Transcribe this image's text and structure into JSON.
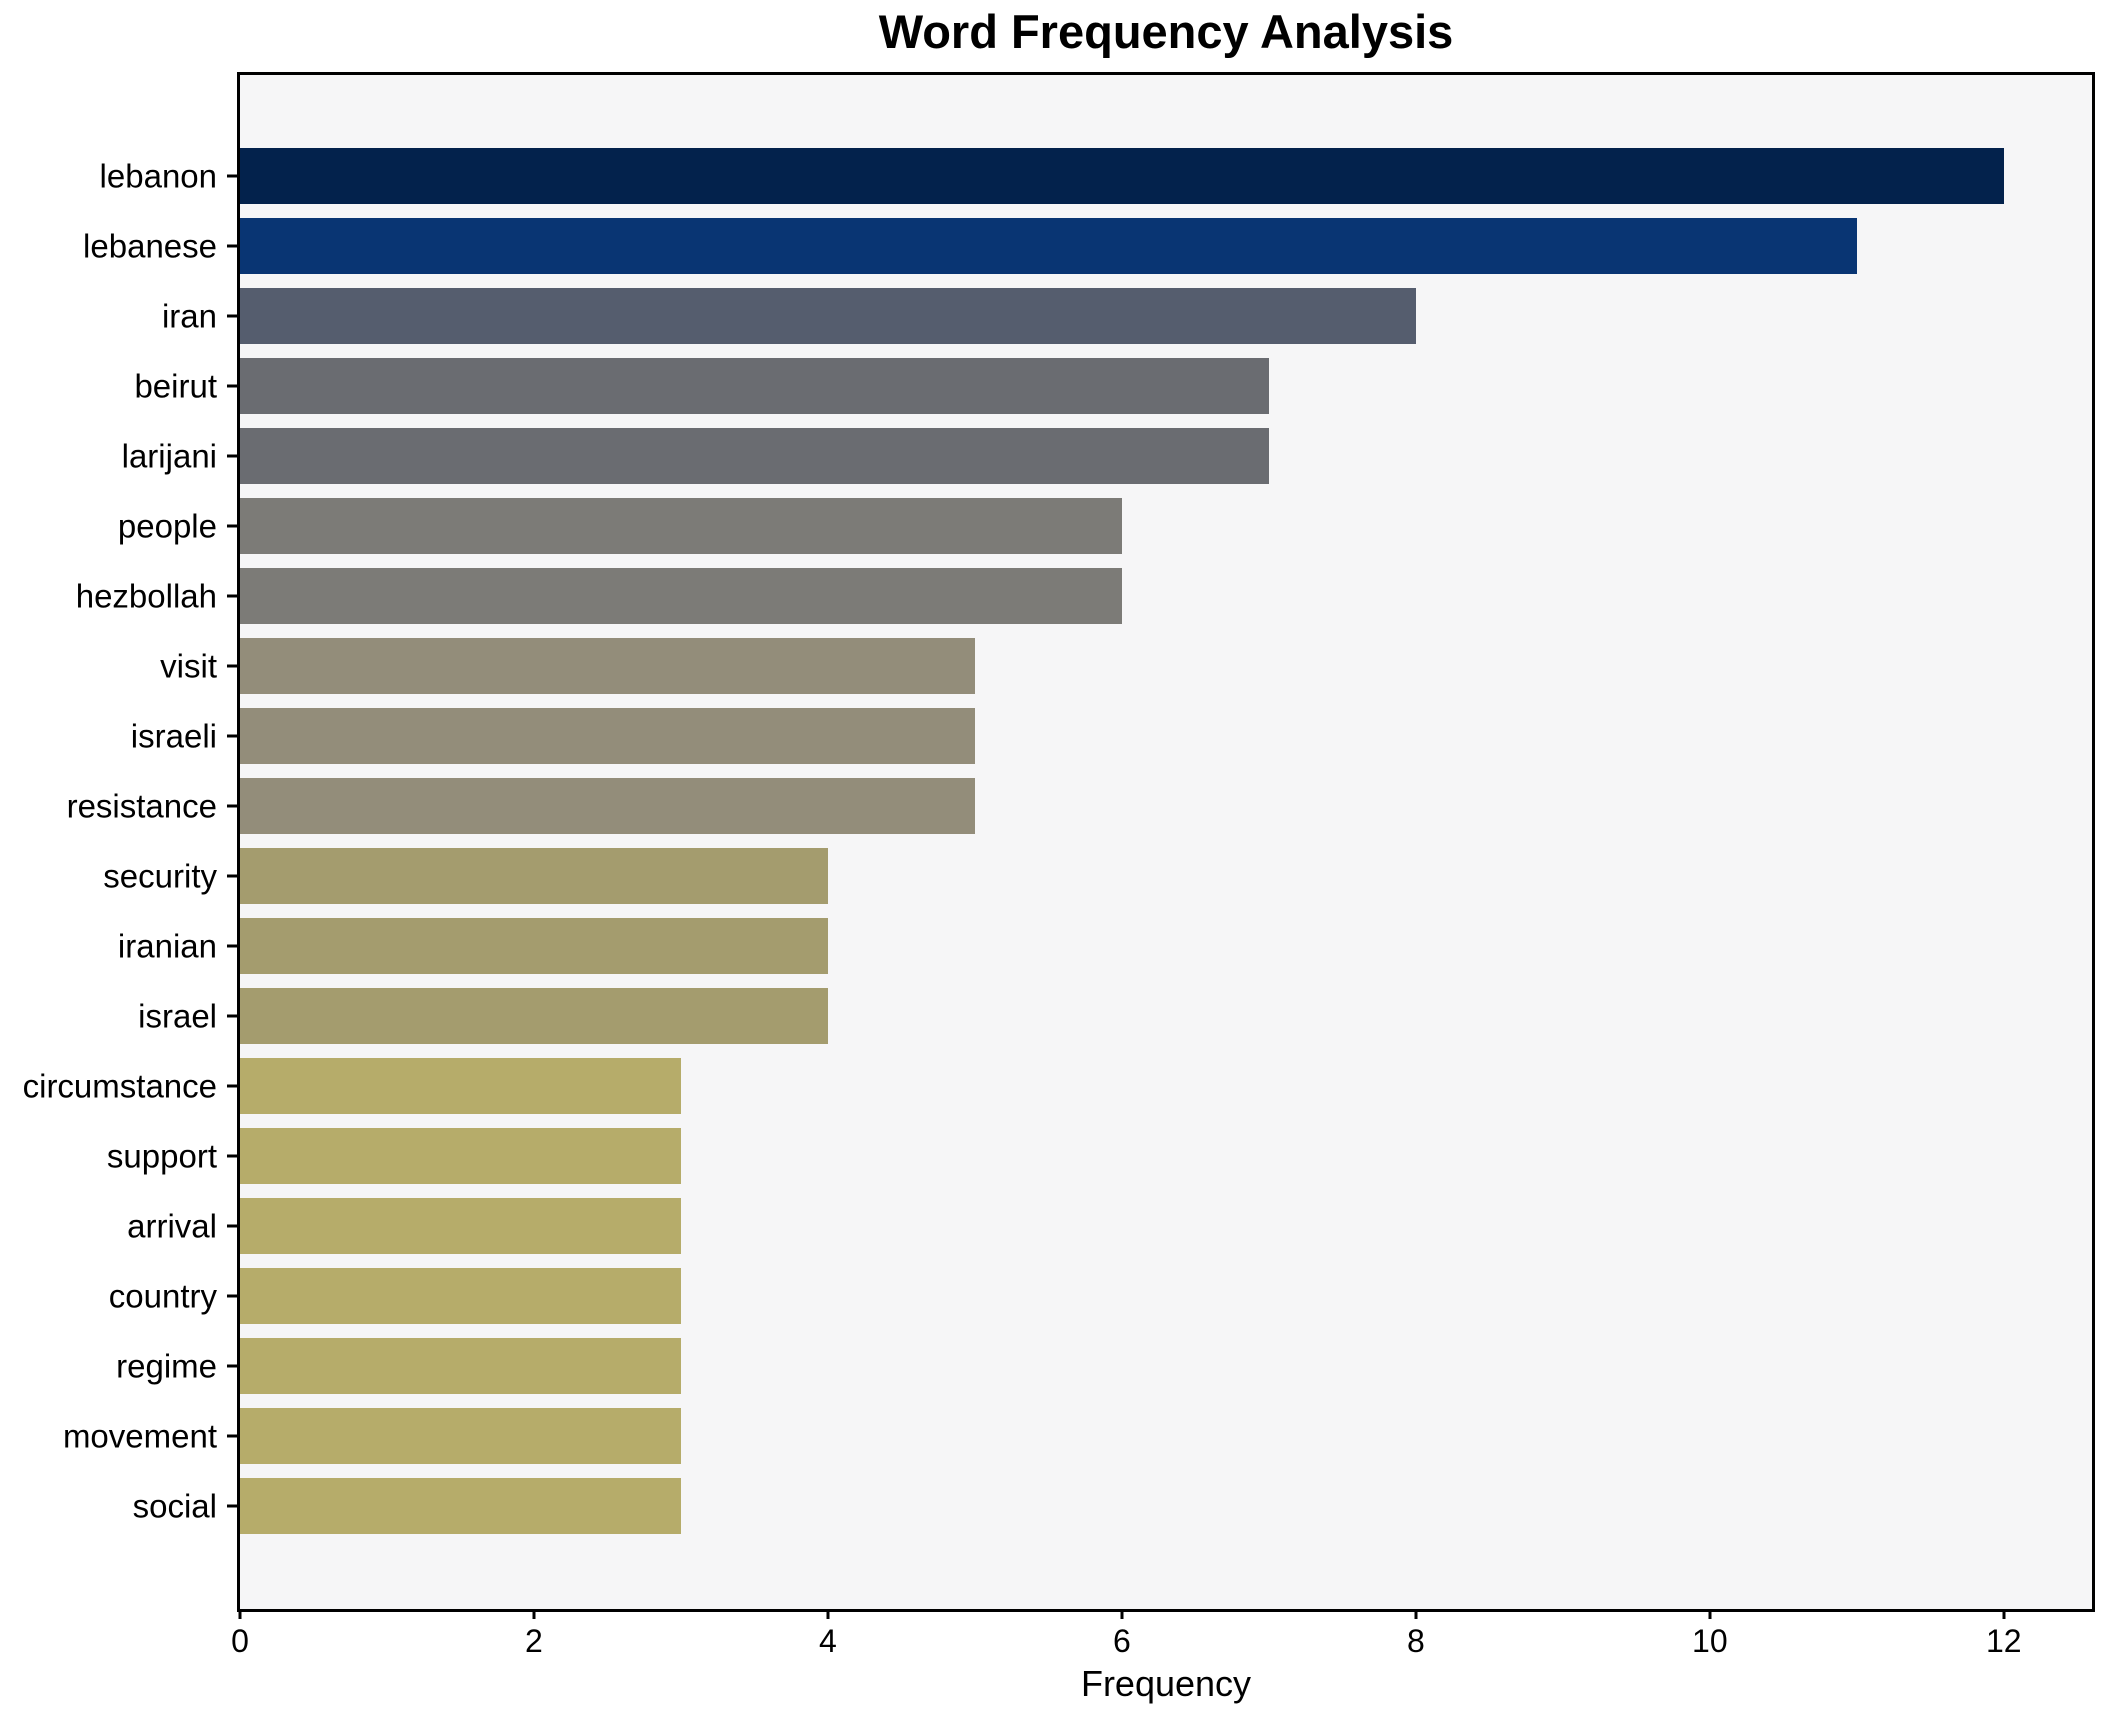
{
  "chart_data": {
    "type": "bar",
    "orientation": "horizontal",
    "title": "Word Frequency Analysis",
    "xlabel": "Frequency",
    "ylabel": "",
    "categories": [
      "lebanon",
      "lebanese",
      "iran",
      "beirut",
      "larijani",
      "people",
      "hezbollah",
      "visit",
      "israeli",
      "resistance",
      "security",
      "iranian",
      "israel",
      "circumstance",
      "support",
      "arrival",
      "country",
      "regime",
      "movement",
      "social"
    ],
    "values": [
      12,
      11,
      8,
      7,
      7,
      6,
      6,
      5,
      5,
      5,
      4,
      4,
      4,
      3,
      3,
      3,
      3,
      3,
      3,
      3
    ],
    "bar_colors": [
      "#03224c",
      "#093573",
      "#555d6e",
      "#6a6c71",
      "#6a6c71",
      "#7c7b77",
      "#7c7b77",
      "#938d7a",
      "#938d7a",
      "#938d7a",
      "#a49c6e",
      "#a49c6e",
      "#a49c6e",
      "#b6ac6a",
      "#b6ac6a",
      "#b6ac6a",
      "#b6ac6a",
      "#b6ac6a",
      "#b6ac6a",
      "#b6ac6a"
    ],
    "x_ticks": [
      0,
      2,
      4,
      6,
      8,
      10,
      12
    ],
    "xlim": [
      0,
      12.6
    ],
    "grid": false,
    "legend": false,
    "plot_background": "#f6f6f7",
    "figure_background": "#ffffff",
    "spine_color": "#000000"
  }
}
